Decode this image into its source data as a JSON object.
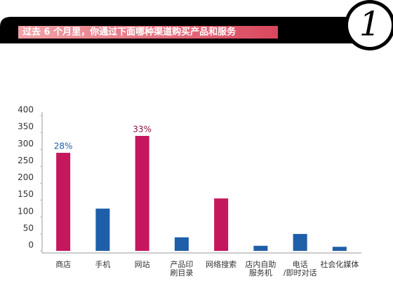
{
  "chart_data": {
    "type": "bar",
    "title": "过去 6 个月里，你通过下面哪种渠道购买产品和服务",
    "badge": "1",
    "categories": [
      "商店",
      "手机",
      "网站",
      "产品印\n刷目录",
      "网络搜索",
      "店内自助\n服务机",
      "电话\n/即时对话",
      "社会化媒体"
    ],
    "values": [
      290,
      125,
      340,
      40,
      155,
      15,
      50,
      12
    ],
    "colors": [
      "#c4175e",
      "#1f5ea8",
      "#c4175e",
      "#1f5ea8",
      "#c4175e",
      "#1f5ea8",
      "#1f5ea8",
      "#1f5ea8"
    ],
    "annotations": [
      {
        "text": "28%",
        "category": "商店",
        "color": "#1f5ea8"
      },
      {
        "text": "33%",
        "category": "网站",
        "color": "#8a1046"
      }
    ],
    "ylim": [
      0,
      400
    ],
    "yticks": [
      0,
      50,
      100,
      150,
      200,
      250,
      300,
      350,
      400
    ]
  }
}
